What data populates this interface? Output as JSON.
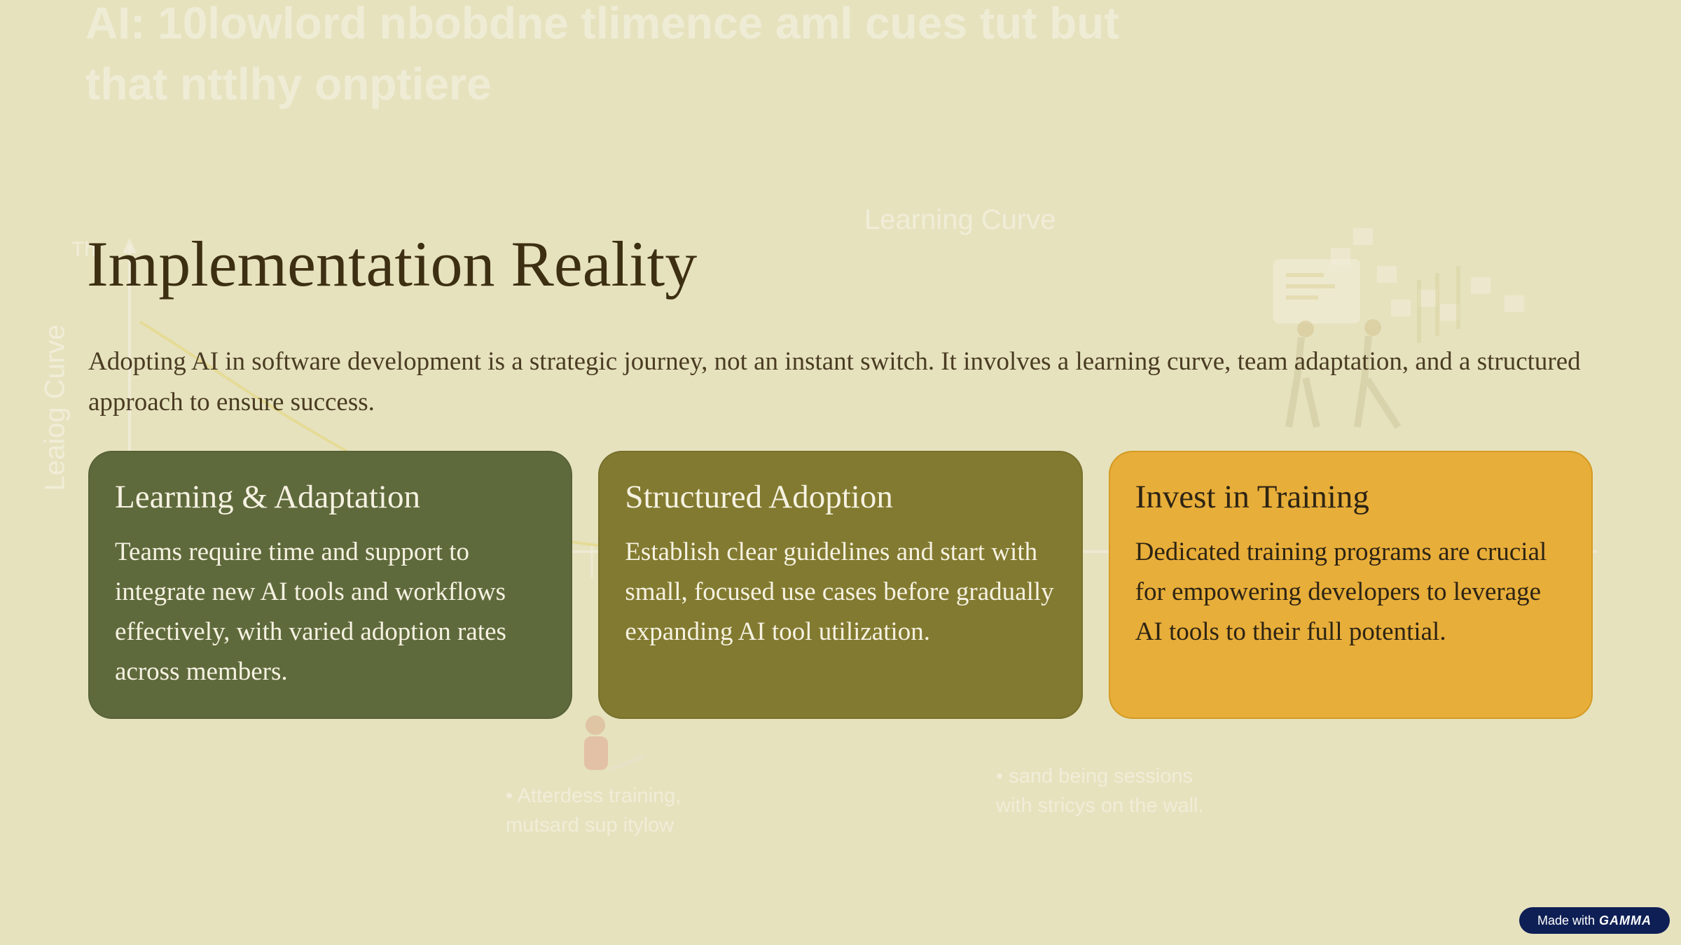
{
  "background": {
    "headline": "AI: 10lowlord nbobdne tlimence aml cues tut but that nttlhy onptiere",
    "chart_title": "Learning Curve",
    "y_axis_label": "Leaiog Curve",
    "axis_tick": "Th",
    "bullet_1": "• Atterdess training, mutsard sup itylow",
    "bullet_2": "• sand being sessions with stricys on the wall."
  },
  "slide": {
    "title": "Implementation Reality",
    "subtitle": "Adopting AI in software development is a strategic journey, not an instant switch. It involves a learning curve, team adaptation, and a structured approach to ensure success."
  },
  "cards": [
    {
      "heading": "Learning & Adaptation",
      "body": "Teams require time and support to integrate new AI tools and workflows effectively, with varied adoption rates across members.",
      "color": "#5f6a3c"
    },
    {
      "heading": "Structured Adoption",
      "body": "Establish clear guidelines and start with small, focused use cases before gradually expanding AI tool utilization.",
      "color": "#827a30"
    },
    {
      "heading": "Invest in Training",
      "body": "Dedicated training programs are crucial for empowering developers to leverage AI tools to their full potential.",
      "color": "#e8ae3a"
    }
  ],
  "badge": {
    "prefix": "Made with",
    "brand": "GAMMA"
  }
}
